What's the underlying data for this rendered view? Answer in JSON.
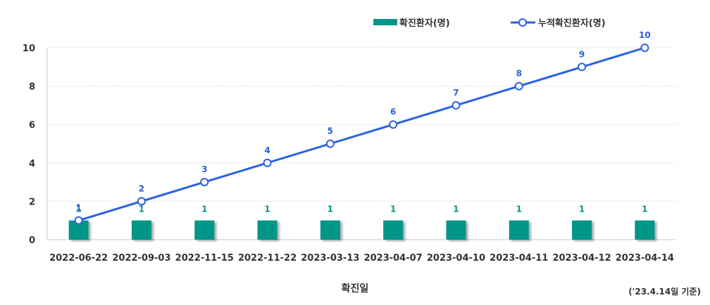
{
  "chart_data": {
    "type": "bar",
    "categories": [
      "2022-06-22",
      "2022-09-03",
      "2022-11-15",
      "2022-11-22",
      "2023-03-13",
      "2023-04-07",
      "2023-04-10",
      "2023-04-11",
      "2023-04-12",
      "2023-04-14"
    ],
    "series": [
      {
        "name": "확진환자(명)",
        "type": "bar",
        "values": [
          1,
          1,
          1,
          1,
          1,
          1,
          1,
          1,
          1,
          1
        ],
        "color": "#009688"
      },
      {
        "name": "누적확진환자(명)",
        "type": "line",
        "values": [
          1,
          2,
          3,
          4,
          5,
          6,
          7,
          8,
          9,
          10
        ],
        "color": "#2a62e0"
      }
    ],
    "xlabel": "확진일",
    "ylabel": "",
    "ylim": [
      0,
      10
    ],
    "yticks": [
      0,
      2,
      4,
      6,
      8,
      10
    ],
    "grid": true,
    "legend": "top-right",
    "note": "('23.4.14일 기준)"
  }
}
